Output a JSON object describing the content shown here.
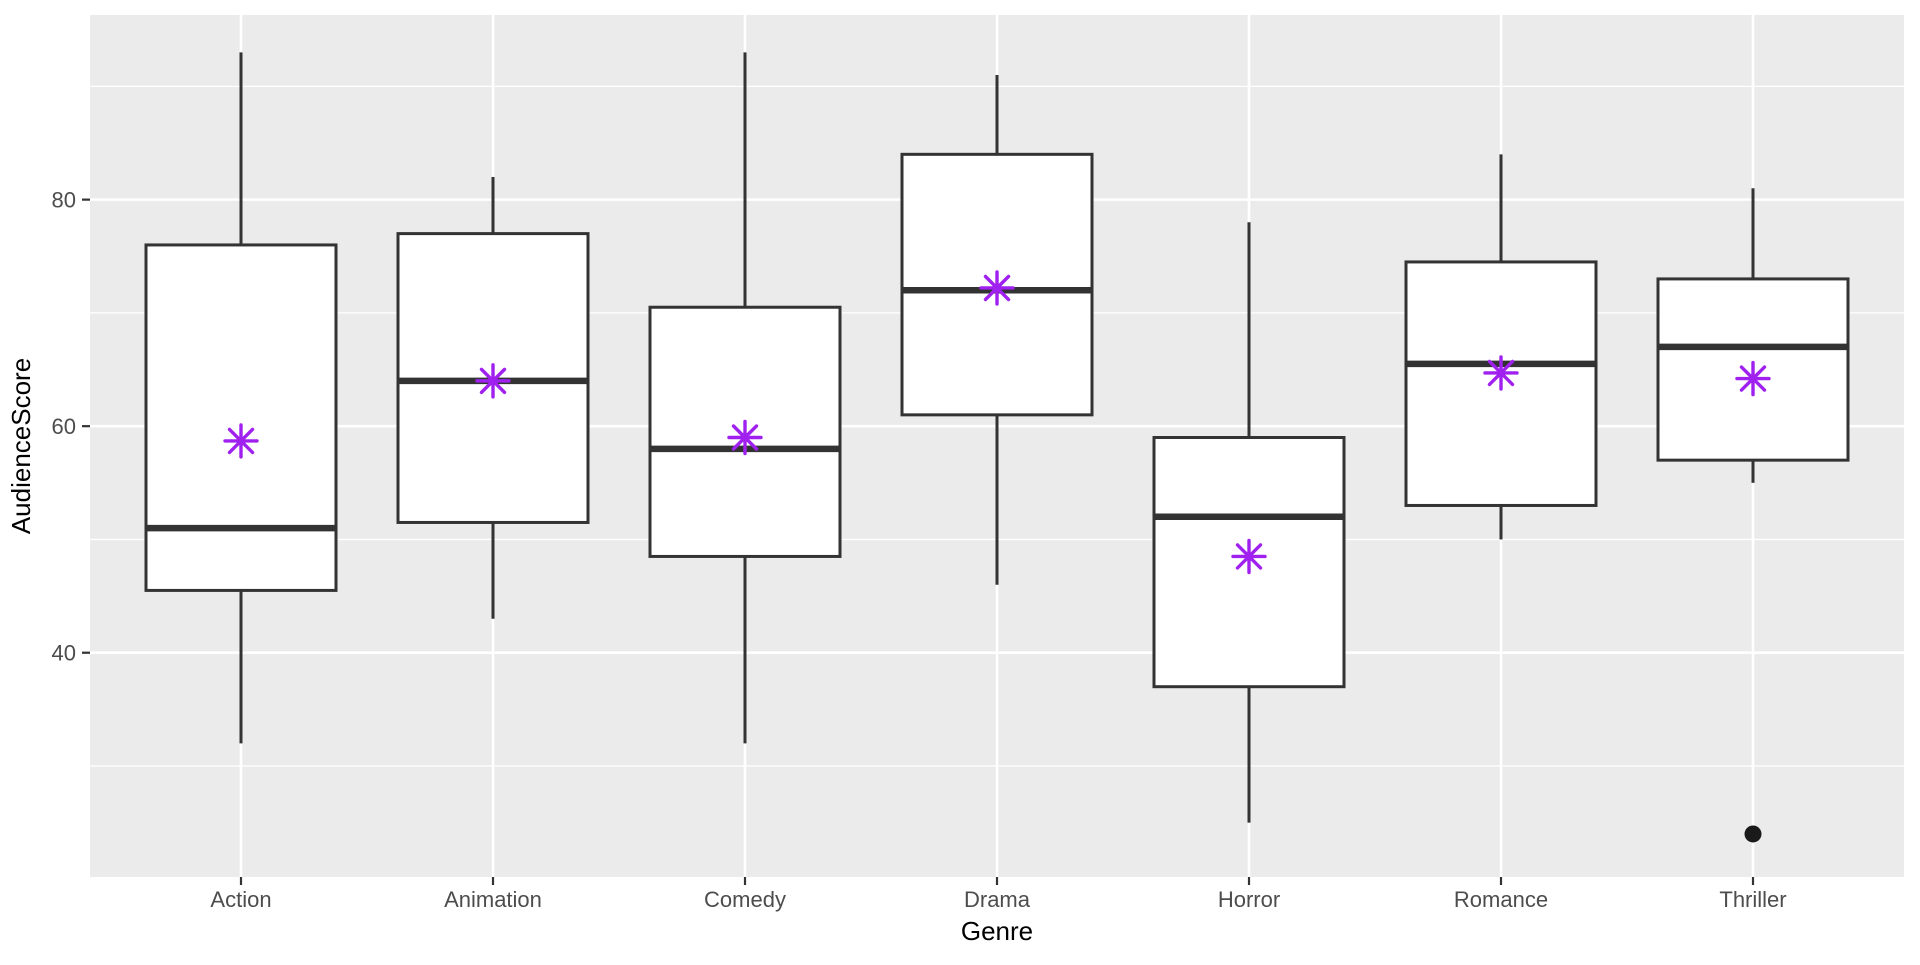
{
  "chart_data": {
    "type": "boxplot",
    "title": "",
    "xlabel": "Genre",
    "ylabel": "AudienceScore",
    "categories": [
      "Action",
      "Animation",
      "Comedy",
      "Drama",
      "Horror",
      "Romance",
      "Thriller"
    ],
    "series": [
      {
        "genre": "Action",
        "min": 32,
        "q1": 45.5,
        "median": 51,
        "q3": 76,
        "max": 93,
        "mean": 58.7,
        "outliers": []
      },
      {
        "genre": "Animation",
        "min": 43,
        "q1": 51.5,
        "median": 64,
        "q3": 77,
        "max": 82,
        "mean": 64.0,
        "outliers": []
      },
      {
        "genre": "Comedy",
        "min": 32,
        "q1": 48.5,
        "median": 58,
        "q3": 70.5,
        "max": 93,
        "mean": 59.0,
        "outliers": []
      },
      {
        "genre": "Drama",
        "min": 46,
        "q1": 61,
        "median": 72,
        "q3": 84,
        "max": 91,
        "mean": 72.2,
        "outliers": []
      },
      {
        "genre": "Horror",
        "min": 25,
        "q1": 37,
        "median": 52,
        "q3": 59,
        "max": 78,
        "mean": 48.5,
        "outliers": []
      },
      {
        "genre": "Romance",
        "min": 50,
        "q1": 53,
        "median": 65.5,
        "q3": 74.5,
        "max": 84,
        "mean": 64.7,
        "outliers": []
      },
      {
        "genre": "Thriller",
        "min": 55,
        "q1": 57,
        "median": 67,
        "q3": 73,
        "max": 81,
        "mean": 64.2,
        "outliers": [
          24
        ]
      }
    ],
    "y_axis": {
      "ticks": [
        40,
        60,
        80
      ],
      "tick_labels": [
        "40",
        "60",
        "80"
      ],
      "minor_ticks": [
        30,
        50,
        70,
        90
      ],
      "ylim": [
        20.2,
        96.3
      ]
    },
    "x_axis": {
      "tick_labels": [
        "Action",
        "Animation",
        "Comedy",
        "Drama",
        "Horror",
        "Romance",
        "Thriller"
      ]
    },
    "legend": "none",
    "grid": "on",
    "mean_marker": {
      "shape": "asterisk-8-point",
      "color": "#A020F0"
    },
    "outlier_marker": {
      "shape": "filled-circle",
      "color": "#1A1A1A"
    },
    "colors": {
      "panel_background": "#EBEBEB",
      "grid_line": "#FFFFFF",
      "box_border": "#333333",
      "box_fill": "#FFFFFF",
      "median_line": "#333333",
      "whisker": "#333333",
      "axis_tick_mark": "#333333",
      "axis_text": "#4D4D4D",
      "axis_title": "#000000",
      "figure_background": "#FFFFFF"
    }
  }
}
